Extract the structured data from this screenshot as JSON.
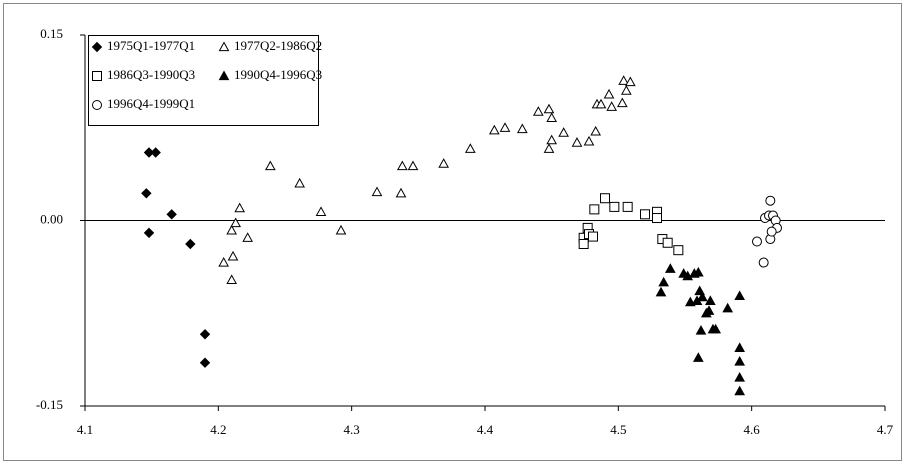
{
  "chart_data": {
    "type": "scatter",
    "xlim": [
      4.1,
      4.7
    ],
    "xticks": [
      4.1,
      4.2,
      4.3,
      4.4,
      4.5,
      4.6,
      4.7
    ],
    "ylim": [
      -0.15,
      0.15
    ],
    "yticks": [
      -0.15,
      {
        "value": 0,
        "label": "0.00"
      },
      0.15
    ],
    "series": [
      {
        "name": "1975Q1-1977Q1",
        "color": "#000000",
        "marker": "diamond",
        "x": [
          4.148,
          4.153,
          4.146,
          4.165,
          4.148,
          4.179,
          4.19,
          4.19
        ],
        "values": [
          0.055,
          0.055,
          0.022,
          0.005,
          -0.01,
          -0.019,
          -0.092,
          -0.115
        ]
      },
      {
        "name": "1977Q2-1986Q2",
        "color": "#000000",
        "marker": "triangle-open",
        "x": [
          4.216,
          4.21,
          4.213,
          4.204,
          4.211,
          4.21,
          4.222,
          4.239,
          4.261,
          4.277,
          4.292,
          4.319,
          4.337,
          4.338,
          4.346,
          4.369,
          4.389,
          4.407,
          4.415,
          4.428,
          4.44,
          4.448,
          4.45,
          4.45,
          4.448,
          4.459,
          4.469,
          4.478,
          4.483,
          4.484,
          4.487,
          4.493,
          4.495,
          4.503,
          4.504,
          4.509,
          4.506
        ],
        "values": [
          0.01,
          -0.008,
          -0.002,
          -0.034,
          -0.029,
          -0.048,
          -0.014,
          0.044,
          0.03,
          0.007,
          -0.008,
          0.023,
          0.022,
          0.044,
          0.044,
          0.046,
          0.058,
          0.073,
          0.075,
          0.074,
          0.088,
          0.09,
          0.083,
          0.065,
          0.058,
          0.071,
          0.063,
          0.064,
          0.072,
          0.094,
          0.094,
          0.102,
          0.092,
          0.095,
          0.113,
          0.112,
          0.105
        ]
      },
      {
        "name": "1986Q3-1990Q3",
        "color": "#000000",
        "marker": "square-open",
        "x": [
          4.474,
          4.474,
          4.477,
          4.478,
          4.481,
          4.482,
          4.49,
          4.497,
          4.507,
          4.52,
          4.529,
          4.529,
          4.533,
          4.537,
          4.545
        ],
        "values": [
          -0.014,
          -0.019,
          -0.006,
          -0.011,
          -0.013,
          0.009,
          0.018,
          0.011,
          0.011,
          0.005,
          0.007,
          0.002,
          -0.015,
          -0.018,
          -0.024
        ]
      },
      {
        "name": "1990Q4-1996Q3",
        "color": "#000000",
        "marker": "triangle",
        "x": [
          4.532,
          4.534,
          4.539,
          4.549,
          4.552,
          4.557,
          4.554,
          4.559,
          4.56,
          4.561,
          4.563,
          4.566,
          4.569,
          4.562,
          4.571,
          4.56,
          4.573,
          4.568,
          4.582,
          4.591,
          4.591,
          4.591,
          4.591,
          4.591
        ],
        "values": [
          -0.058,
          -0.05,
          -0.039,
          -0.043,
          -0.045,
          -0.043,
          -0.066,
          -0.065,
          -0.042,
          -0.057,
          -0.062,
          -0.075,
          -0.065,
          -0.089,
          -0.088,
          -0.111,
          -0.088,
          -0.073,
          -0.071,
          -0.061,
          -0.103,
          -0.114,
          -0.127,
          -0.138
        ]
      },
      {
        "name": "1996Q4-1999Q1",
        "color": "#000000",
        "marker": "circle-open",
        "x": [
          4.604,
          4.609,
          4.61,
          4.613,
          4.614,
          4.614,
          4.616,
          4.618,
          4.619,
          4.615
        ],
        "values": [
          -0.017,
          -0.034,
          0.002,
          0.004,
          0.016,
          -0.015,
          0.004,
          0,
          -0.006,
          -0.009
        ]
      }
    ]
  }
}
